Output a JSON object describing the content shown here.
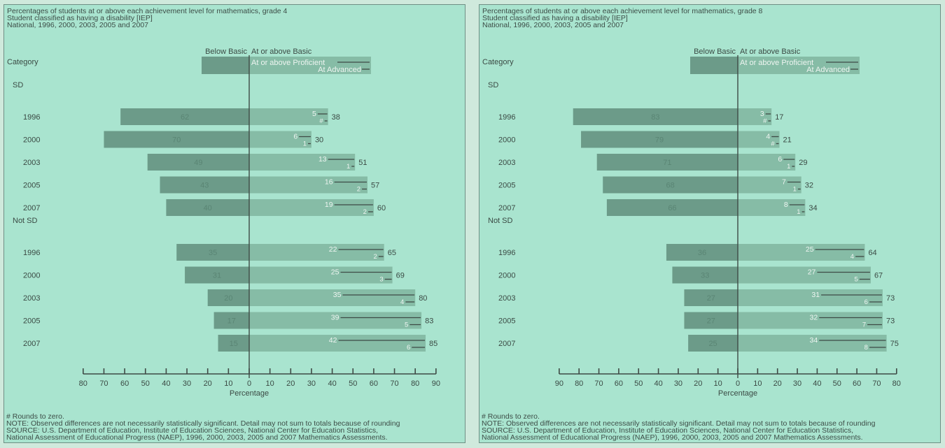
{
  "colors": {
    "background": "#a9e4cf",
    "below_basic": "#6c9b89",
    "at_or_above_basic": "#86bca6",
    "line": "#3e4a45",
    "text": "#3b4a44"
  },
  "chart_data": [
    {
      "type": "bar",
      "title": "Percentages of students at or above each achievement level for mathematics, grade 4",
      "subtitle": "Student classified as having a disability [IEP]",
      "subtitle2": "National, 1996, 2000, 2003, 2005 and 2007",
      "category_header": "Category",
      "legend": {
        "below_basic": "Below Basic",
        "at_or_above_basic": "At or above Basic",
        "at_or_above_proficient": "At or above Proficient",
        "at_advanced": "At Advanced"
      },
      "xlabel": "Percentage",
      "xlim": [
        -80,
        90
      ],
      "xticks": [
        "80",
        "70",
        "60",
        "50",
        "40",
        "30",
        "20",
        "10",
        "0",
        "10",
        "20",
        "30",
        "40",
        "50",
        "60",
        "70",
        "80",
        "90"
      ],
      "groups": [
        {
          "name": "SD",
          "rows": [
            {
              "year": "1996",
              "below_basic": "62",
              "basic": "38",
              "proficient": "5",
              "advanced": "#"
            },
            {
              "year": "2000",
              "below_basic": "70",
              "basic": "30",
              "proficient": "6",
              "advanced": "1"
            },
            {
              "year": "2003",
              "below_basic": "49",
              "basic": "51",
              "proficient": "13",
              "advanced": "1"
            },
            {
              "year": "2005",
              "below_basic": "43",
              "basic": "57",
              "proficient": "16",
              "advanced": "2"
            },
            {
              "year": "2007",
              "below_basic": "40",
              "basic": "60",
              "proficient": "19",
              "advanced": "2"
            }
          ]
        },
        {
          "name": "Not SD",
          "rows": [
            {
              "year": "1996",
              "below_basic": "35",
              "basic": "65",
              "proficient": "22",
              "advanced": "2"
            },
            {
              "year": "2000",
              "below_basic": "31",
              "basic": "69",
              "proficient": "25",
              "advanced": "3"
            },
            {
              "year": "2003",
              "below_basic": "20",
              "basic": "80",
              "proficient": "35",
              "advanced": "4"
            },
            {
              "year": "2005",
              "below_basic": "17",
              "basic": "83",
              "proficient": "39",
              "advanced": "5"
            },
            {
              "year": "2007",
              "below_basic": "15",
              "basic": "85",
              "proficient": "42",
              "advanced": "6"
            }
          ]
        }
      ],
      "footnotes": [
        "# Rounds to zero.",
        "NOTE: Observed differences are not necessarily statistically significant. Detail may not sum to totals because of rounding",
        "SOURCE: U.S. Department of Education, Institute of Education Sciences, National Center for Education Statistics,",
        "National Assessment of Educational Progress (NAEP), 1996, 2000, 2003, 2005 and 2007 Mathematics Assessments."
      ]
    },
    {
      "type": "bar",
      "title": "Percentages of students at or above each achievement level for mathematics, grade 8",
      "subtitle": "Student classified as having a disability [IEP]",
      "subtitle2": "National, 1996, 2000, 2003, 2005 and 2007",
      "category_header": "Category",
      "legend": {
        "below_basic": "Below Basic",
        "at_or_above_basic": "At or above Basic",
        "at_or_above_proficient": "At or above Proficient",
        "at_advanced": "At Advanced"
      },
      "xlabel": "Percentage",
      "xlim": [
        -90,
        80
      ],
      "xticks": [
        "90",
        "80",
        "70",
        "60",
        "50",
        "40",
        "30",
        "20",
        "10",
        "0",
        "10",
        "20",
        "30",
        "40",
        "50",
        "60",
        "70",
        "80"
      ],
      "groups": [
        {
          "name": "SD",
          "rows": [
            {
              "year": "1996",
              "below_basic": "83",
              "basic": "17",
              "proficient": "3",
              "advanced": "#"
            },
            {
              "year": "2000",
              "below_basic": "79",
              "basic": "21",
              "proficient": "4",
              "advanced": "#"
            },
            {
              "year": "2003",
              "below_basic": "71",
              "basic": "29",
              "proficient": "6",
              "advanced": "1"
            },
            {
              "year": "2005",
              "below_basic": "68",
              "basic": "32",
              "proficient": "7",
              "advanced": "1"
            },
            {
              "year": "2007",
              "below_basic": "66",
              "basic": "34",
              "proficient": "8",
              "advanced": "1"
            }
          ]
        },
        {
          "name": "Not SD",
          "rows": [
            {
              "year": "1996",
              "below_basic": "36",
              "basic": "64",
              "proficient": "25",
              "advanced": "4"
            },
            {
              "year": "2000",
              "below_basic": "33",
              "basic": "67",
              "proficient": "27",
              "advanced": "5"
            },
            {
              "year": "2003",
              "below_basic": "27",
              "basic": "73",
              "proficient": "31",
              "advanced": "6"
            },
            {
              "year": "2005",
              "below_basic": "27",
              "basic": "73",
              "proficient": "32",
              "advanced": "7"
            },
            {
              "year": "2007",
              "below_basic": "25",
              "basic": "75",
              "proficient": "34",
              "advanced": "8"
            }
          ]
        }
      ],
      "footnotes": [
        "# Rounds to zero.",
        "NOTE: Observed differences are not necessarily statistically significant. Detail may not sum to totals because of rounding",
        "SOURCE: U.S. Department of Education, Institute of Education Sciences, National Center for Education Statistics,",
        "National Assessment of Educational Progress (NAEP), 1996, 2000, 2003, 2005 and 2007 Mathematics Assessments."
      ]
    }
  ]
}
